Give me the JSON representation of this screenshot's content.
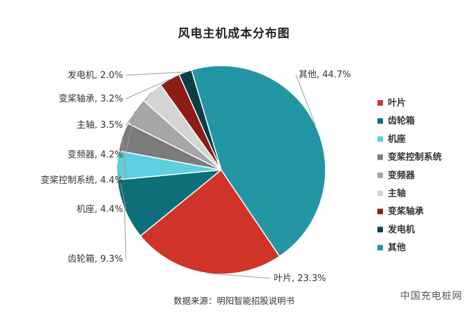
{
  "chart_data": {
    "type": "pie",
    "title": "风电主机成本分布图",
    "slices": [
      {
        "name": "叶片",
        "value": 23.3,
        "label": "叶片, 23.3%",
        "color": "#d03429"
      },
      {
        "name": "齿轮箱",
        "value": 9.3,
        "label": "齿轮箱, 9.3%",
        "color": "#0d6f7a"
      },
      {
        "name": "机座",
        "value": 4.4,
        "label": "机座, 4.4%",
        "color": "#5ccfe0"
      },
      {
        "name": "变桨控制系统",
        "value": 4.4,
        "label": "变桨控制系统, 4.4%",
        "color": "#7b7b7b"
      },
      {
        "name": "变频器",
        "value": 4.2,
        "label": "变频器, 4.2%",
        "color": "#a6a6a6"
      },
      {
        "name": "主轴",
        "value": 3.5,
        "label": "主轴, 3.5%",
        "color": "#d4d4d4"
      },
      {
        "name": "变桨轴承",
        "value": 3.2,
        "label": "变桨轴承, 3.2%",
        "color": "#8b1d17"
      },
      {
        "name": "发电机",
        "value": 2.0,
        "label": "发电机, 2.0%",
        "color": "#0b3d47"
      },
      {
        "name": "其他",
        "value": 44.7,
        "label": "其他, 44.7%",
        "color": "#2396a6"
      }
    ],
    "legend_position": "right"
  },
  "source_note": "数据来源：明阳智能招股说明书",
  "watermark": "中国充电桩网"
}
